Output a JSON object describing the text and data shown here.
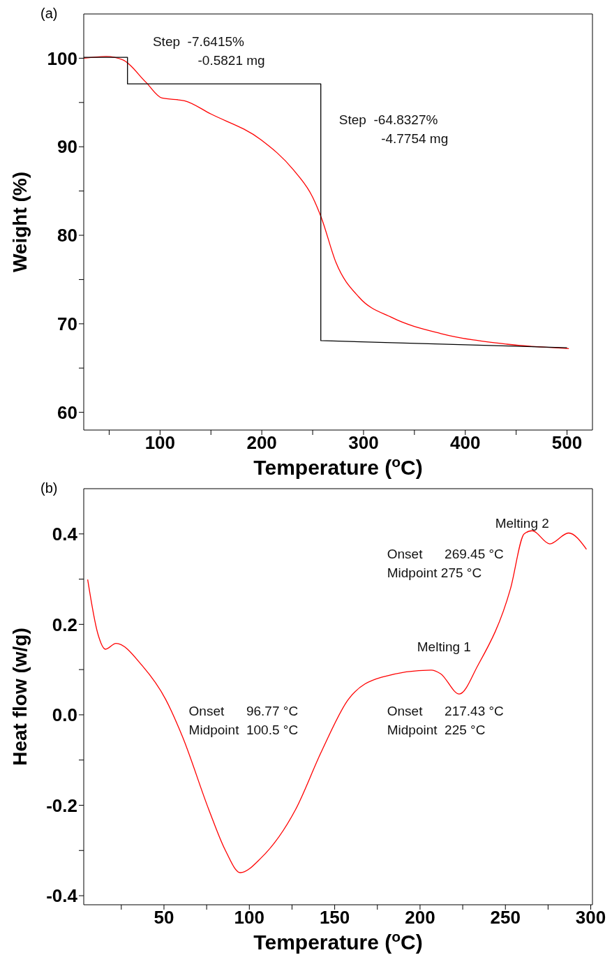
{
  "chart_data": [
    {
      "type": "line",
      "title": "(a)",
      "xlabel": "Temperature ($^{o}$C)",
      "ylabel": "Weight (%)",
      "series": [
        {
          "color": "#ff0000",
          "x": [
            25,
            47,
            63.6,
            86,
            102,
            124,
            150,
            199,
            231,
            250,
            258.5,
            273,
            295.6,
            328,
            376,
            440.6,
            501.8
          ],
          "values": [
            100,
            100.2,
            99.8,
            97.3,
            95.5,
            95.2,
            93.7,
            90.8,
            87.4,
            84.3,
            82,
            76.9,
            73,
            70.7,
            68.9,
            67.7,
            67.2
          ]
        },
        {
          "color": "#000000",
          "x": [
            25,
            68,
            68,
            258,
            258,
            500
          ],
          "values": [
            100.1,
            100.1,
            97.1,
            97.1,
            68.1,
            67.3
          ]
        }
      ],
      "xlim": [
        25,
        525
      ],
      "ylim": [
        58,
        105
      ],
      "xticks": [
        {
          "value": 50,
          "label": null
        },
        100,
        {
          "value": 150,
          "label": null
        },
        200,
        {
          "value": 250,
          "label": null
        },
        300,
        {
          "value": 350,
          "label": null
        },
        400,
        {
          "value": 450,
          "label": null
        },
        500
      ],
      "yticks": [
        60,
        {
          "value": 65,
          "label": null
        },
        70,
        {
          "value": 75,
          "label": null
        },
        80,
        {
          "value": 85,
          "label": null
        },
        90,
        {
          "value": 95,
          "label": null
        },
        100
      ],
      "annotations": [
        "Step  -7.6415%",
        "-0.5821 mg",
        "Step  -64.8327%",
        "-4.7754 mg"
      ],
      "grid": false,
      "marker": "none",
      "line_style": "solid"
    },
    {
      "type": "line",
      "title": "(b)",
      "xlabel": "Temperature ($^{o}$C)",
      "ylabel": "Heat flow (w/g)",
      "series": [
        {
          "color": "#ff0000",
          "x": [
            5.3,
            11.2,
            15.7,
            21.9,
            37.4,
            51,
            60.8,
            76.3,
            86,
            94.7,
            107,
            127,
            142.4,
            158,
            177.4,
            206.5,
            212,
            223,
            233.7,
            253,
            261,
            265.7,
            276,
            287,
            297.5
          ],
          "values": [
            0.299,
            0.18,
            0.145,
            0.158,
            0.108,
            0.034,
            -0.048,
            -0.21,
            -0.3,
            -0.349,
            -0.316,
            -0.21,
            -0.08,
            0.034,
            0.083,
            0.099,
            0.091,
            0.046,
            0.108,
            0.279,
            0.4,
            0.407,
            0.378,
            0.402,
            0.366
          ]
        }
      ],
      "xlim": [
        3,
        301
      ],
      "ylim": [
        -0.42,
        0.5
      ],
      "xticks": [
        {
          "value": 25,
          "label": null
        },
        50,
        {
          "value": 75,
          "label": null
        },
        100,
        {
          "value": 125,
          "label": null
        },
        150,
        {
          "value": 175,
          "label": null
        },
        200,
        {
          "value": 225,
          "label": null
        },
        250,
        {
          "value": 275,
          "label": null
        },
        300
      ],
      "yticks": [
        {
          "value": -0.4,
          "label": "-0.4"
        },
        {
          "value": -0.3,
          "label": null
        },
        {
          "value": -0.2,
          "label": "-0.2"
        },
        {
          "value": -0.1,
          "label": null
        },
        {
          "value": 0,
          "label": "0.0"
        },
        {
          "value": 0.1,
          "label": null
        },
        {
          "value": 0.2,
          "label": "0.2"
        },
        {
          "value": 0.3,
          "label": null
        },
        {
          "value": 0.4,
          "label": "0.4"
        }
      ],
      "annotations": [
        "Onset      96.77 °C",
        "Midpoint  100.5 °C",
        "Onset      217.43 °C",
        "Midpoint  225 °C",
        "Onset      269.45 °C",
        "Midpoint 275 °C",
        "Melting 1",
        "Melting 2"
      ],
      "grid": false,
      "marker": "none",
      "line_style": "solid"
    }
  ]
}
